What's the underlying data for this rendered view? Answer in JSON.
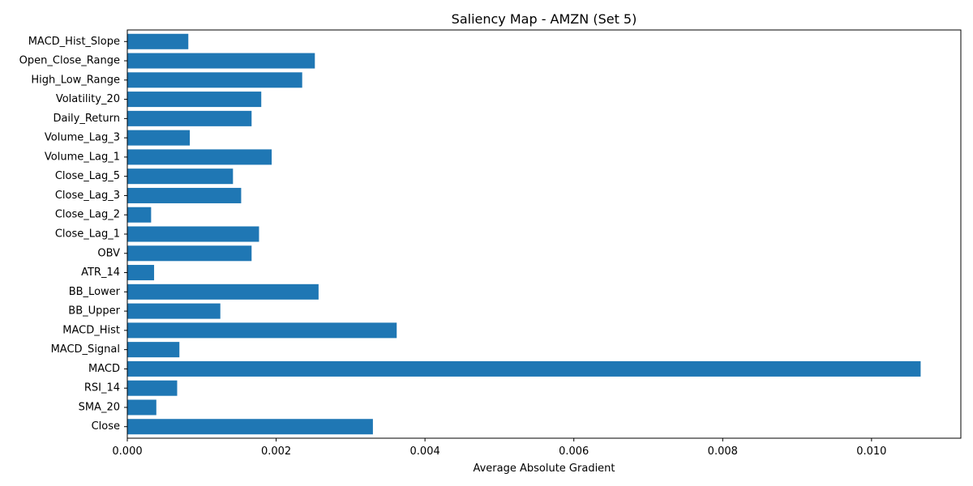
{
  "chart_data": {
    "type": "bar",
    "orientation": "horizontal",
    "title": "Saliency Map - AMZN (Set 5)",
    "xlabel": "Average Absolute Gradient",
    "ylabel": "",
    "xlim": [
      0,
      0.0112
    ],
    "xticks": [
      0.0,
      0.002,
      0.004,
      0.006,
      0.008,
      0.01
    ],
    "xtick_labels": [
      "0.000",
      "0.002",
      "0.004",
      "0.006",
      "0.008",
      "0.010"
    ],
    "grid": false,
    "bar_color": "#1f77b4",
    "categories": [
      "Close",
      "SMA_20",
      "RSI_14",
      "MACD",
      "MACD_Signal",
      "MACD_Hist",
      "BB_Upper",
      "BB_Lower",
      "ATR_14",
      "OBV",
      "Close_Lag_1",
      "Close_Lag_2",
      "Close_Lag_3",
      "Close_Lag_5",
      "Volume_Lag_1",
      "Volume_Lag_3",
      "Daily_Return",
      "Volatility_20",
      "High_Low_Range",
      "Open_Close_Range",
      "MACD_Hist_Slope"
    ],
    "values": [
      0.0033,
      0.00039,
      0.00067,
      0.01066,
      0.0007,
      0.00362,
      0.00125,
      0.00257,
      0.00036,
      0.00167,
      0.00177,
      0.00032,
      0.00153,
      0.00142,
      0.00194,
      0.00084,
      0.00167,
      0.0018,
      0.00235,
      0.00252,
      0.00082
    ]
  }
}
